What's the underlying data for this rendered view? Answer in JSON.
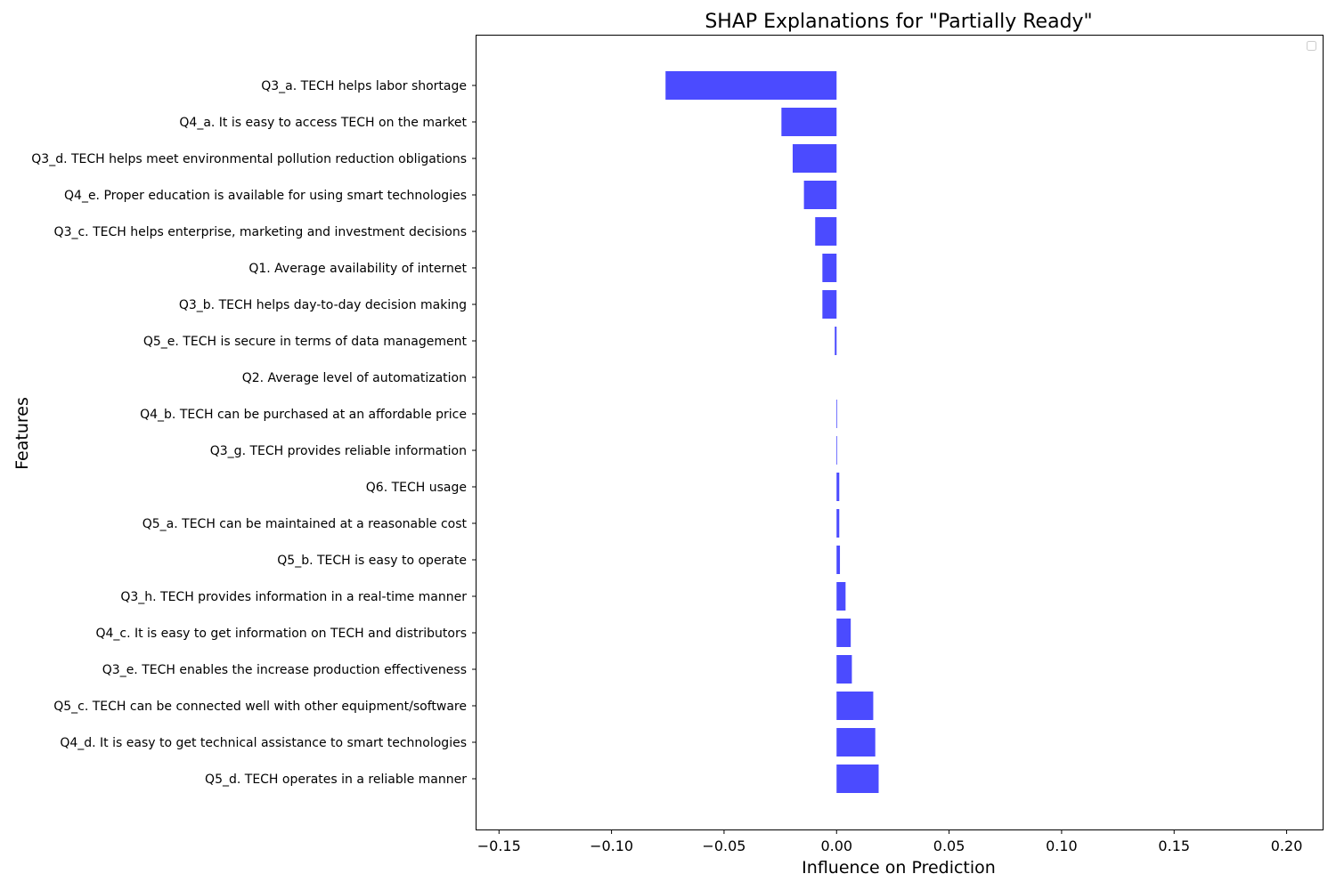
{
  "chart_data": {
    "type": "bar",
    "orientation": "horizontal",
    "title": "SHAP Explanations for \"Partially Ready\"",
    "xlabel": "Influence on Prediction",
    "ylabel": "Features",
    "xlim": [
      -0.16,
      0.216
    ],
    "xticks": [
      -0.15,
      -0.1,
      -0.05,
      0.0,
      0.05,
      0.1,
      0.15,
      0.2
    ],
    "xtick_labels": [
      "−0.15",
      "−0.10",
      "−0.05",
      "0.00",
      "0.05",
      "0.10",
      "0.15",
      "0.20"
    ],
    "bar_color": "#4b4bff",
    "legend_position": "top-right",
    "categories": [
      "Q3_a. TECH helps labor shortage",
      "Q4_a. It is easy to access TECH on the market",
      "Q3_d. TECH helps meet environmental pollution reduction obligations",
      "Q4_e. Proper education is available for using smart technologies",
      "Q3_c. TECH helps enterprise, marketing and investment decisions",
      "Q1. Average availability of internet",
      "Q3_b. TECH helps day-to-day decision making",
      "Q5_e. TECH is secure in terms of data management",
      "Q2. Average level of automatization",
      "Q4_b. TECH can be purchased at an affordable price",
      "Q3_g. TECH provides reliable information",
      "Q6. TECH usage",
      "Q5_a. TECH can be maintained at a reasonable cost",
      "Q5_b. TECH is easy to operate",
      "Q3_h. TECH provides information in a real-time manner",
      "Q4_c. It is easy to get information on TECH and distributors",
      "Q3_e. TECH enables the increase production effectiveness",
      "Q5_c. TECH can be connected well with other equipment/software",
      "Q4_d. It is easy to get technical assistance to smart technologies",
      "Q5_d. TECH operates in a reliable manner"
    ],
    "values": [
      -0.076,
      -0.0245,
      -0.0195,
      -0.0145,
      -0.0095,
      -0.0063,
      -0.0063,
      -0.0008,
      0.0,
      0.0003,
      0.0003,
      0.0012,
      0.0012,
      0.0015,
      0.004,
      0.0063,
      0.0068,
      0.0163,
      0.0172,
      0.0187
    ]
  }
}
